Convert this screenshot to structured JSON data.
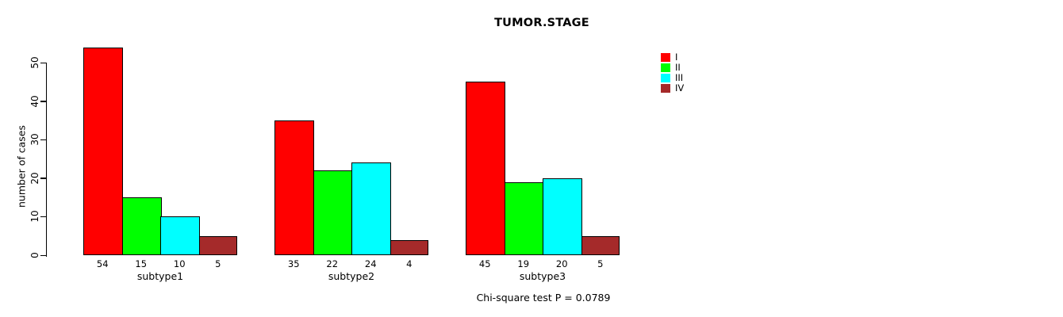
{
  "chart_data": {
    "type": "bar",
    "title": "TUMOR.STAGE",
    "ylabel": "number of cases",
    "xlabel": "",
    "categories": [
      "subtype1",
      "subtype2",
      "subtype3"
    ],
    "series": [
      {
        "name": "I",
        "color": "#FF0000",
        "values": [
          54,
          35,
          45
        ]
      },
      {
        "name": "II",
        "color": "#00FF00",
        "values": [
          15,
          22,
          19
        ]
      },
      {
        "name": "III",
        "color": "#00FFFF",
        "values": [
          10,
          24,
          20
        ]
      },
      {
        "name": "IV",
        "color": "#A52A2A",
        "values": [
          5,
          4,
          5
        ]
      }
    ],
    "yticks": [
      0,
      10,
      20,
      30,
      40,
      50
    ],
    "ylim": [
      0,
      54
    ],
    "grid": false,
    "bar_value_labels_shown": true,
    "legend": {
      "position": "right-top",
      "entries": [
        "I",
        "II",
        "III",
        "IV"
      ]
    },
    "annotation": "Chi-square test P = 0.0789"
  }
}
